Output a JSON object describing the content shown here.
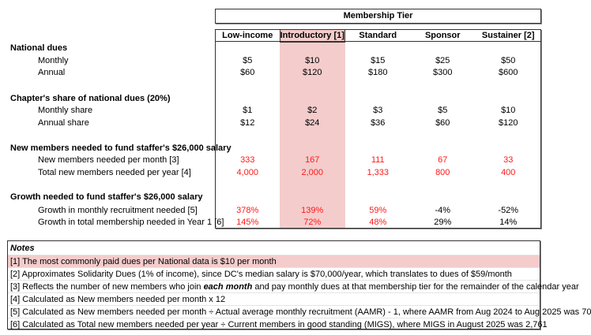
{
  "tier_title": "Membership Tier",
  "columns": [
    "Low-income",
    "Introductory [1]",
    "Standard",
    "Sponsor",
    "Sustainer [2]"
  ],
  "highlight_color": "#f4cccc",
  "negative_color": "#ff1a1a",
  "sections": [
    {
      "title": "National dues",
      "rows": [
        {
          "label": "Monthly",
          "values": [
            "$5",
            "$10",
            "$15",
            "$25",
            "$50"
          ]
        },
        {
          "label": "Annual",
          "values": [
            "$60",
            "$120",
            "$180",
            "$300",
            "$600"
          ]
        }
      ]
    },
    {
      "title": "Chapter's share of national dues (20%)",
      "rows": [
        {
          "label": "Monthly share",
          "values": [
            "$1",
            "$2",
            "$3",
            "$5",
            "$10"
          ]
        },
        {
          "label": "Annual share",
          "values": [
            "$12",
            "$24",
            "$36",
            "$60",
            "$120"
          ]
        }
      ]
    },
    {
      "title": "New members needed to fund staffer's $26,000 salary",
      "rows": [
        {
          "label": "New members needed per month [3]",
          "values": [
            "333",
            "167",
            "111",
            "67",
            "33"
          ]
        },
        {
          "label": "Total new members needed per year [4]",
          "values": [
            "4,000",
            "2,000",
            "1,333",
            "800",
            "400"
          ]
        }
      ]
    },
    {
      "title": "Growth needed to fund staffer's $26,000 salary",
      "rows": [
        {
          "label": "Growth in monthly recruitment needed [5]",
          "values": [
            "378%",
            "139%",
            "59%",
            "-4%",
            "-52%"
          ]
        },
        {
          "label": "Growth in total membership needed in Year 1 [6]",
          "values": [
            "145%",
            "72%",
            "48%",
            "29%",
            "14%"
          ]
        }
      ]
    }
  ],
  "red_flags": [
    [
      false,
      false,
      false,
      false,
      false
    ],
    [
      false,
      false,
      false,
      false,
      false
    ],
    [
      false,
      false,
      false,
      false,
      false
    ],
    [
      false,
      false,
      false,
      false,
      false
    ],
    [
      true,
      true,
      true,
      true,
      true
    ],
    [
      true,
      true,
      true,
      true,
      true
    ],
    [
      true,
      true,
      true,
      false,
      false
    ],
    [
      true,
      true,
      true,
      false,
      false
    ]
  ],
  "notes": {
    "title": "Notes",
    "items": [
      "[1] The most commonly paid dues per National data is $10 per month",
      "[2] Approximates Solidarity Dues (1% of income), since DC's median salary is $70,000/year, which translates to dues of $59/month",
      {
        "pre": "[3] Reflects the number of new members who join ",
        "em": "each month",
        "post": " and pay monthly dues at that membership tier for the remainder of the calendar year"
      },
      "[4] Calculated as New members needed per month x 12",
      "[5] Calculated as New members needed per month ÷ Actual average monthly recruitment (AAMR) - 1, where AAMR from Aug 2024 to Aug 2025 was 70",
      "[6] Calculated as Total new members needed per year ÷ Current members in good standing (MIGS), where MIGS in August 2025 was 2,761"
    ]
  }
}
